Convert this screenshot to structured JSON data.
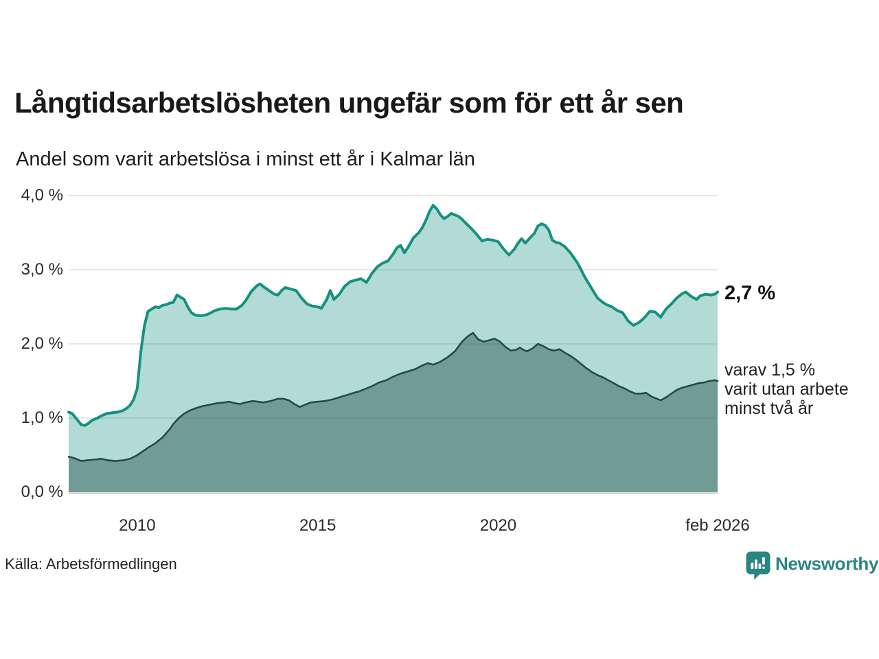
{
  "header": {
    "title": "Långtidsarbetslösheten ungefär som för ett år sen",
    "subtitle": "Andel som varit arbetslösa i minst ett år i Kalmar län"
  },
  "footer": {
    "source": "Källa: Arbetsförmedlingen",
    "brand_name": "Newsworthy"
  },
  "annotations": {
    "total_end_label": "2,7 %",
    "twoyear_line1": "varav 1,5 %",
    "twoyear_line2": "varit utan arbete",
    "twoyear_line3": "minst två år"
  },
  "colors": {
    "line_total": "#15917f",
    "fill_total": "rgba(21,145,128,0.33)",
    "line_twoyear": "#24494f",
    "fill_twoyear": "rgba(31,79,70,0.45)",
    "gridline": "#dedede",
    "baseline": "#c9c9c9",
    "brand_teal": "#2a8683"
  },
  "chart_data": {
    "type": "area",
    "title": "Långtidsarbetslösheten ungefär som för ett år sen",
    "subtitle": "Andel som varit arbetslösa i minst ett år i Kalmar län",
    "x_domain": [
      2008.1,
      2026.08
    ],
    "y_domain": [
      0,
      4
    ],
    "grid": true,
    "legend_position": "right-annotations",
    "x_ticks": [
      {
        "label": "2010",
        "year": 2010
      },
      {
        "label": "2015",
        "year": 2015
      },
      {
        "label": "2020",
        "year": 2020
      },
      {
        "label": "feb 2026",
        "year": 2026.08
      }
    ],
    "y_ticks": [
      {
        "label": "0,0 %",
        "value": 0
      },
      {
        "label": "1,0 %",
        "value": 1
      },
      {
        "label": "2,0 %",
        "value": 2
      },
      {
        "label": "3,0 %",
        "value": 3
      },
      {
        "label": "4,0 %",
        "value": 4
      }
    ],
    "series": [
      {
        "name": "Arbetslösa minst ett år",
        "end_value_label": "2,7 %",
        "end_value": 2.7,
        "points": [
          [
            2008.1,
            1.08
          ],
          [
            2008.2,
            1.06
          ],
          [
            2008.3,
            1.0
          ],
          [
            2008.45,
            0.91
          ],
          [
            2008.55,
            0.9
          ],
          [
            2008.65,
            0.93
          ],
          [
            2008.75,
            0.97
          ],
          [
            2008.9,
            1.0
          ],
          [
            2009.0,
            1.03
          ],
          [
            2009.15,
            1.06
          ],
          [
            2009.3,
            1.07
          ],
          [
            2009.45,
            1.08
          ],
          [
            2009.6,
            1.1
          ],
          [
            2009.7,
            1.13
          ],
          [
            2009.8,
            1.17
          ],
          [
            2009.9,
            1.25
          ],
          [
            2010.0,
            1.4
          ],
          [
            2010.1,
            1.9
          ],
          [
            2010.2,
            2.25
          ],
          [
            2010.3,
            2.44
          ],
          [
            2010.4,
            2.47
          ],
          [
            2010.5,
            2.5
          ],
          [
            2010.6,
            2.49
          ],
          [
            2010.7,
            2.52
          ],
          [
            2010.8,
            2.53
          ],
          [
            2010.9,
            2.55
          ],
          [
            2011.0,
            2.56
          ],
          [
            2011.1,
            2.66
          ],
          [
            2011.2,
            2.63
          ],
          [
            2011.3,
            2.6
          ],
          [
            2011.4,
            2.5
          ],
          [
            2011.5,
            2.42
          ],
          [
            2011.6,
            2.39
          ],
          [
            2011.75,
            2.38
          ],
          [
            2011.9,
            2.39
          ],
          [
            2012.0,
            2.41
          ],
          [
            2012.15,
            2.45
          ],
          [
            2012.3,
            2.47
          ],
          [
            2012.45,
            2.48
          ],
          [
            2012.6,
            2.47
          ],
          [
            2012.75,
            2.47
          ],
          [
            2012.9,
            2.52
          ],
          [
            2013.0,
            2.58
          ],
          [
            2013.15,
            2.7
          ],
          [
            2013.3,
            2.78
          ],
          [
            2013.4,
            2.81
          ],
          [
            2013.5,
            2.77
          ],
          [
            2013.65,
            2.72
          ],
          [
            2013.8,
            2.67
          ],
          [
            2013.9,
            2.66
          ],
          [
            2014.0,
            2.72
          ],
          [
            2014.1,
            2.76
          ],
          [
            2014.25,
            2.74
          ],
          [
            2014.4,
            2.72
          ],
          [
            2014.55,
            2.62
          ],
          [
            2014.7,
            2.54
          ],
          [
            2014.85,
            2.51
          ],
          [
            2015.0,
            2.5
          ],
          [
            2015.1,
            2.48
          ],
          [
            2015.25,
            2.6
          ],
          [
            2015.35,
            2.72
          ],
          [
            2015.45,
            2.6
          ],
          [
            2015.6,
            2.67
          ],
          [
            2015.75,
            2.78
          ],
          [
            2015.9,
            2.84
          ],
          [
            2016.05,
            2.86
          ],
          [
            2016.2,
            2.88
          ],
          [
            2016.35,
            2.83
          ],
          [
            2016.5,
            2.95
          ],
          [
            2016.65,
            3.04
          ],
          [
            2016.8,
            3.09
          ],
          [
            2016.95,
            3.12
          ],
          [
            2017.1,
            3.22
          ],
          [
            2017.2,
            3.3
          ],
          [
            2017.3,
            3.33
          ],
          [
            2017.4,
            3.23
          ],
          [
            2017.5,
            3.3
          ],
          [
            2017.65,
            3.43
          ],
          [
            2017.8,
            3.5
          ],
          [
            2017.9,
            3.57
          ],
          [
            2018.0,
            3.67
          ],
          [
            2018.1,
            3.79
          ],
          [
            2018.2,
            3.87
          ],
          [
            2018.3,
            3.82
          ],
          [
            2018.4,
            3.74
          ],
          [
            2018.5,
            3.69
          ],
          [
            2018.6,
            3.72
          ],
          [
            2018.7,
            3.76
          ],
          [
            2018.8,
            3.74
          ],
          [
            2018.9,
            3.72
          ],
          [
            2019.0,
            3.68
          ],
          [
            2019.1,
            3.63
          ],
          [
            2019.25,
            3.56
          ],
          [
            2019.4,
            3.48
          ],
          [
            2019.55,
            3.39
          ],
          [
            2019.7,
            3.41
          ],
          [
            2019.85,
            3.4
          ],
          [
            2020.0,
            3.38
          ],
          [
            2020.15,
            3.28
          ],
          [
            2020.3,
            3.2
          ],
          [
            2020.45,
            3.28
          ],
          [
            2020.55,
            3.36
          ],
          [
            2020.65,
            3.42
          ],
          [
            2020.75,
            3.36
          ],
          [
            2020.9,
            3.44
          ],
          [
            2021.0,
            3.49
          ],
          [
            2021.1,
            3.59
          ],
          [
            2021.2,
            3.62
          ],
          [
            2021.3,
            3.6
          ],
          [
            2021.4,
            3.54
          ],
          [
            2021.5,
            3.4
          ],
          [
            2021.6,
            3.37
          ],
          [
            2021.7,
            3.36
          ],
          [
            2021.85,
            3.31
          ],
          [
            2022.0,
            3.23
          ],
          [
            2022.1,
            3.16
          ],
          [
            2022.2,
            3.09
          ],
          [
            2022.3,
            3.0
          ],
          [
            2022.4,
            2.9
          ],
          [
            2022.5,
            2.82
          ],
          [
            2022.6,
            2.74
          ],
          [
            2022.75,
            2.62
          ],
          [
            2022.9,
            2.56
          ],
          [
            2023.0,
            2.53
          ],
          [
            2023.15,
            2.5
          ],
          [
            2023.3,
            2.45
          ],
          [
            2023.45,
            2.42
          ],
          [
            2023.6,
            2.31
          ],
          [
            2023.75,
            2.25
          ],
          [
            2023.9,
            2.29
          ],
          [
            2024.0,
            2.33
          ],
          [
            2024.1,
            2.38
          ],
          [
            2024.2,
            2.44
          ],
          [
            2024.35,
            2.43
          ],
          [
            2024.5,
            2.36
          ],
          [
            2024.65,
            2.47
          ],
          [
            2024.8,
            2.54
          ],
          [
            2024.95,
            2.62
          ],
          [
            2025.1,
            2.68
          ],
          [
            2025.2,
            2.7
          ],
          [
            2025.35,
            2.64
          ],
          [
            2025.5,
            2.6
          ],
          [
            2025.6,
            2.65
          ],
          [
            2025.75,
            2.67
          ],
          [
            2025.9,
            2.66
          ],
          [
            2026.0,
            2.67
          ],
          [
            2026.08,
            2.7
          ]
        ]
      },
      {
        "name": "Varav utan arbete minst två år",
        "end_value_label": "1,5 %",
        "end_value": 1.5,
        "points": [
          [
            2008.1,
            0.48
          ],
          [
            2008.25,
            0.46
          ],
          [
            2008.45,
            0.42
          ],
          [
            2008.6,
            0.43
          ],
          [
            2008.8,
            0.44
          ],
          [
            2009.0,
            0.45
          ],
          [
            2009.2,
            0.43
          ],
          [
            2009.4,
            0.42
          ],
          [
            2009.6,
            0.43
          ],
          [
            2009.8,
            0.45
          ],
          [
            2010.0,
            0.5
          ],
          [
            2010.15,
            0.55
          ],
          [
            2010.3,
            0.6
          ],
          [
            2010.5,
            0.66
          ],
          [
            2010.7,
            0.74
          ],
          [
            2010.9,
            0.85
          ],
          [
            2011.0,
            0.92
          ],
          [
            2011.15,
            1.0
          ],
          [
            2011.3,
            1.06
          ],
          [
            2011.45,
            1.1
          ],
          [
            2011.6,
            1.13
          ],
          [
            2011.8,
            1.16
          ],
          [
            2012.0,
            1.18
          ],
          [
            2012.2,
            1.2
          ],
          [
            2012.4,
            1.21
          ],
          [
            2012.55,
            1.22
          ],
          [
            2012.7,
            1.2
          ],
          [
            2012.85,
            1.19
          ],
          [
            2013.0,
            1.21
          ],
          [
            2013.2,
            1.23
          ],
          [
            2013.35,
            1.22
          ],
          [
            2013.5,
            1.21
          ],
          [
            2013.7,
            1.23
          ],
          [
            2013.9,
            1.26
          ],
          [
            2014.05,
            1.26
          ],
          [
            2014.2,
            1.24
          ],
          [
            2014.35,
            1.19
          ],
          [
            2014.5,
            1.15
          ],
          [
            2014.65,
            1.18
          ],
          [
            2014.8,
            1.21
          ],
          [
            2015.0,
            1.22
          ],
          [
            2015.2,
            1.23
          ],
          [
            2015.4,
            1.25
          ],
          [
            2015.6,
            1.28
          ],
          [
            2015.8,
            1.31
          ],
          [
            2016.0,
            1.34
          ],
          [
            2016.15,
            1.36
          ],
          [
            2016.3,
            1.39
          ],
          [
            2016.5,
            1.43
          ],
          [
            2016.7,
            1.48
          ],
          [
            2016.9,
            1.51
          ],
          [
            2017.1,
            1.56
          ],
          [
            2017.3,
            1.6
          ],
          [
            2017.5,
            1.63
          ],
          [
            2017.7,
            1.66
          ],
          [
            2017.9,
            1.71
          ],
          [
            2018.05,
            1.74
          ],
          [
            2018.2,
            1.72
          ],
          [
            2018.4,
            1.76
          ],
          [
            2018.6,
            1.82
          ],
          [
            2018.8,
            1.9
          ],
          [
            2019.0,
            2.03
          ],
          [
            2019.15,
            2.1
          ],
          [
            2019.3,
            2.15
          ],
          [
            2019.45,
            2.06
          ],
          [
            2019.6,
            2.03
          ],
          [
            2019.75,
            2.05
          ],
          [
            2019.9,
            2.07
          ],
          [
            2020.05,
            2.03
          ],
          [
            2020.2,
            1.96
          ],
          [
            2020.35,
            1.91
          ],
          [
            2020.5,
            1.92
          ],
          [
            2020.6,
            1.95
          ],
          [
            2020.7,
            1.92
          ],
          [
            2020.8,
            1.9
          ],
          [
            2020.95,
            1.94
          ],
          [
            2021.1,
            2.0
          ],
          [
            2021.25,
            1.97
          ],
          [
            2021.4,
            1.93
          ],
          [
            2021.55,
            1.91
          ],
          [
            2021.7,
            1.93
          ],
          [
            2021.85,
            1.88
          ],
          [
            2022.0,
            1.84
          ],
          [
            2022.15,
            1.79
          ],
          [
            2022.3,
            1.73
          ],
          [
            2022.45,
            1.67
          ],
          [
            2022.6,
            1.62
          ],
          [
            2022.75,
            1.58
          ],
          [
            2022.9,
            1.55
          ],
          [
            2023.05,
            1.51
          ],
          [
            2023.2,
            1.47
          ],
          [
            2023.35,
            1.43
          ],
          [
            2023.5,
            1.4
          ],
          [
            2023.65,
            1.36
          ],
          [
            2023.8,
            1.33
          ],
          [
            2023.95,
            1.33
          ],
          [
            2024.1,
            1.34
          ],
          [
            2024.25,
            1.29
          ],
          [
            2024.4,
            1.26
          ],
          [
            2024.5,
            1.24
          ],
          [
            2024.65,
            1.28
          ],
          [
            2024.8,
            1.33
          ],
          [
            2024.95,
            1.38
          ],
          [
            2025.1,
            1.41
          ],
          [
            2025.25,
            1.43
          ],
          [
            2025.4,
            1.45
          ],
          [
            2025.55,
            1.47
          ],
          [
            2025.7,
            1.48
          ],
          [
            2025.85,
            1.5
          ],
          [
            2026.0,
            1.51
          ],
          [
            2026.08,
            1.5
          ]
        ]
      }
    ]
  }
}
